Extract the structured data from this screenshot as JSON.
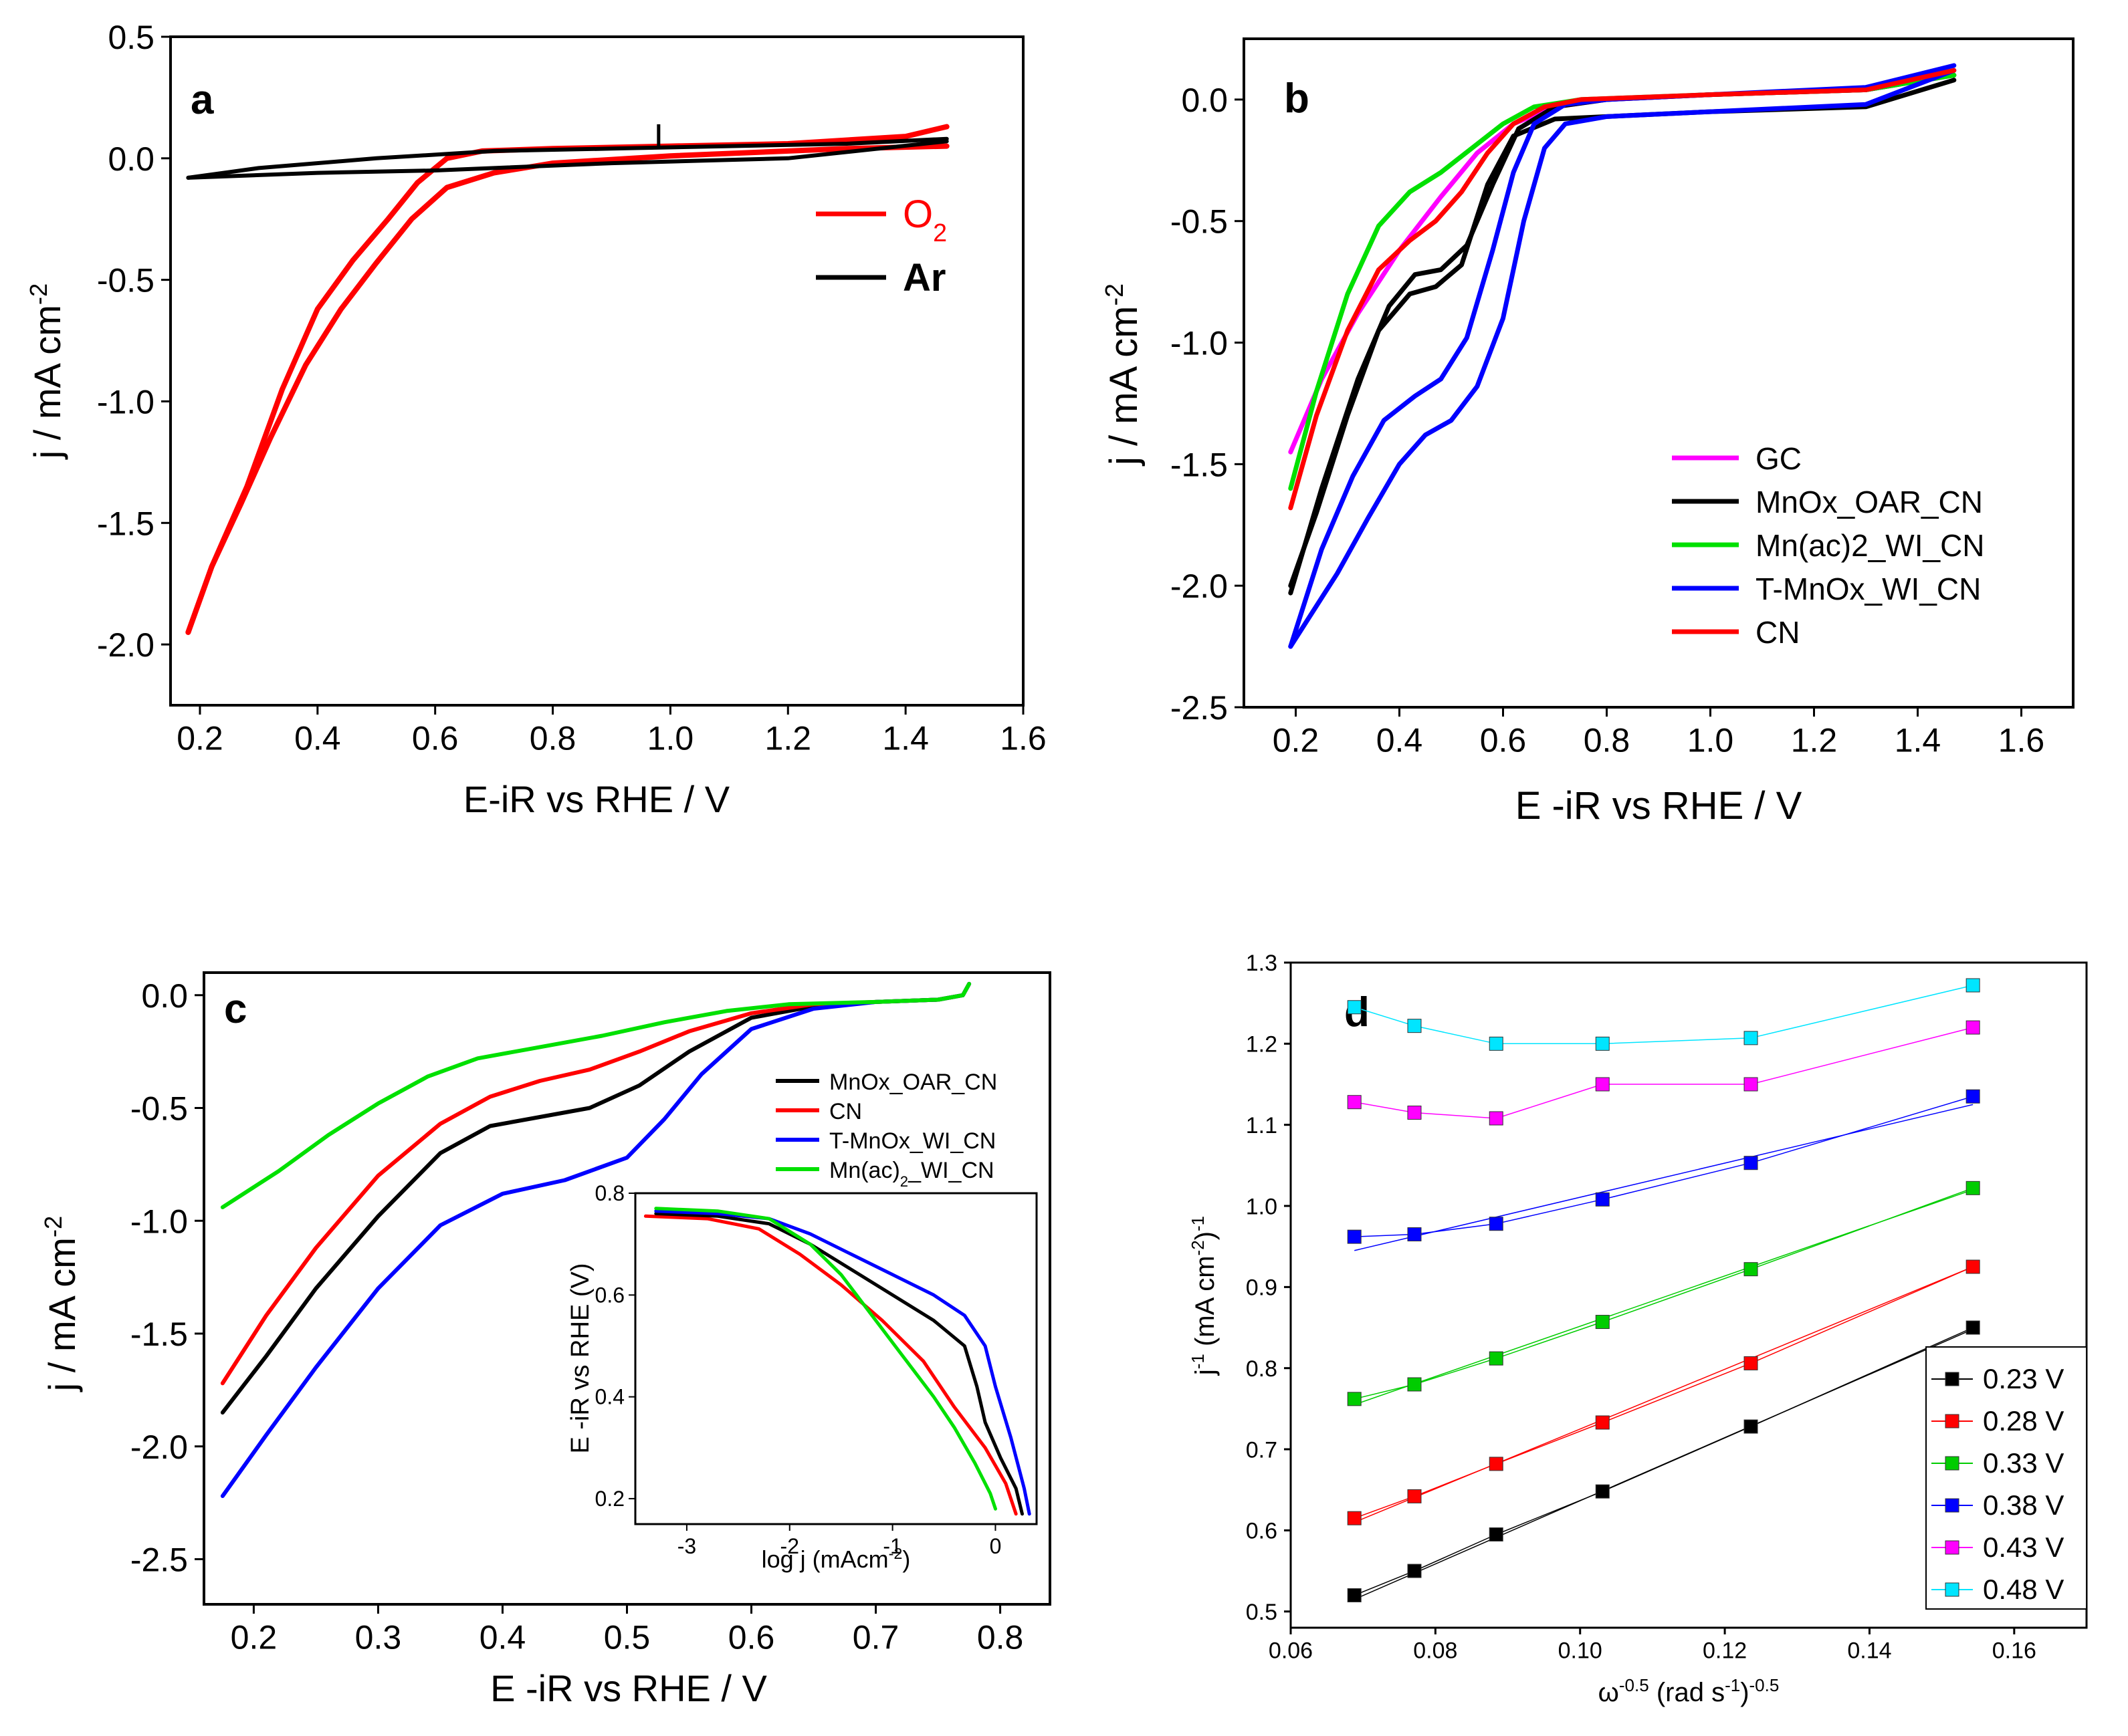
{
  "figure": {
    "description_free": true
  },
  "chart_data": [
    {
      "panel": "a",
      "type": "line",
      "xlabel": "E-iR vs RHE / V",
      "ylabel": "j / mA cm",
      "ylabel_sup": "-2",
      "xlim": [
        0.15,
        1.6
      ],
      "ylim": [
        -2.25,
        0.5
      ],
      "xticks": [
        0.2,
        0.4,
        0.6,
        0.8,
        1.0,
        1.2,
        1.4,
        1.6
      ],
      "xtick_labels": [
        "0.2",
        "0.4",
        "0.6",
        "0.8",
        "1.0",
        "1.2",
        "1.4",
        "1.6"
      ],
      "yticks": [
        0.5,
        0.0,
        -0.5,
        -1.0,
        -1.5,
        -2.0
      ],
      "ytick_labels": [
        "0.5",
        "0.0",
        "-0.5",
        "-1.0",
        "-1.5",
        "-2.0"
      ],
      "legend": [
        {
          "label": "O",
          "sub": "2",
          "color": "#ff0000"
        },
        {
          "label": "Ar",
          "color": "#000000"
        }
      ],
      "series": [
        {
          "name": "O2",
          "color": "#ff0000",
          "width": 8,
          "x": [
            0.18,
            0.22,
            0.28,
            0.34,
            0.4,
            0.46,
            0.52,
            0.57,
            0.62,
            0.68,
            0.8,
            1.0,
            1.2,
            1.4,
            1.47
          ],
          "y": [
            -1.95,
            -1.68,
            -1.35,
            -0.95,
            -0.62,
            -0.42,
            -0.25,
            -0.1,
            0.0,
            0.03,
            0.04,
            0.05,
            0.06,
            0.09,
            0.13
          ]
        },
        {
          "name": "O2 (cathodic)",
          "color": "#ff0000",
          "width": 8,
          "x": [
            1.47,
            1.3,
            1.0,
            0.8,
            0.7,
            0.62,
            0.56,
            0.5,
            0.44,
            0.38,
            0.32,
            0.27,
            0.22,
            0.18
          ],
          "y": [
            0.05,
            0.04,
            0.01,
            -0.02,
            -0.06,
            -0.12,
            -0.25,
            -0.43,
            -0.62,
            -0.85,
            -1.15,
            -1.42,
            -1.68,
            -1.95
          ]
        },
        {
          "name": "Ar",
          "color": "#000000",
          "width": 6,
          "x": [
            0.18,
            0.3,
            0.5,
            0.7,
            0.9,
            1.1,
            1.3,
            1.47
          ],
          "y": [
            -0.08,
            -0.04,
            0.0,
            0.03,
            0.04,
            0.05,
            0.06,
            0.08
          ]
        },
        {
          "name": "Ar (return)",
          "color": "#000000",
          "width": 6,
          "x": [
            1.47,
            1.2,
            0.9,
            0.6,
            0.4,
            0.18
          ],
          "y": [
            0.07,
            0.0,
            -0.02,
            -0.05,
            -0.06,
            -0.08
          ]
        }
      ],
      "spike": {
        "x": 0.98,
        "y0": 0.05,
        "y1": 0.14
      }
    },
    {
      "panel": "b",
      "type": "line",
      "xlabel": "E -iR vs RHE / V",
      "ylabel": "j / mA cm",
      "ylabel_sup": "-2",
      "xlim": [
        0.1,
        1.7
      ],
      "ylim": [
        -2.5,
        0.25
      ],
      "xticks": [
        0.2,
        0.4,
        0.6,
        0.8,
        1.0,
        1.2,
        1.4,
        1.6
      ],
      "xtick_labels": [
        "0.2",
        "0.4",
        "0.6",
        "0.8",
        "1.0",
        "1.2",
        "1.4",
        "1.6"
      ],
      "yticks": [
        0.0,
        -0.5,
        -1.0,
        -1.5,
        -2.0,
        -2.5
      ],
      "ytick_labels": [
        "0.0",
        "-0.5",
        "-1.0",
        "-1.5",
        "-2.0",
        "-2.5"
      ],
      "legend": [
        {
          "label": "GC",
          "color": "#ff00ff"
        },
        {
          "label": "MnOx_OAR_CN",
          "color": "#000000"
        },
        {
          "label": "Mn(ac)2_WI_CN",
          "color": "#00e000"
        },
        {
          "label": "T-MnOx_WI_CN",
          "color": "#0000ff"
        },
        {
          "label": "CN",
          "color": "#ff0000"
        }
      ],
      "series": [
        {
          "name": "GC",
          "color": "#ff00ff",
          "x": [
            0.19,
            0.25,
            0.32,
            0.4,
            0.48,
            0.55,
            0.62,
            0.7,
            0.8,
            1.0,
            1.3,
            1.47
          ],
          "y": [
            -1.45,
            -1.15,
            -0.88,
            -0.62,
            -0.4,
            -0.22,
            -0.1,
            -0.03,
            0.0,
            0.02,
            0.04,
            0.1
          ]
        },
        {
          "name": "MnOx_OAR_CN",
          "color": "#000000",
          "x": [
            0.19,
            0.25,
            0.32,
            0.38,
            0.43,
            0.48,
            0.53,
            0.58,
            0.63,
            0.7,
            0.8,
            1.0,
            1.3,
            1.47
          ],
          "y": [
            -2.03,
            -1.6,
            -1.15,
            -0.85,
            -0.72,
            -0.7,
            -0.6,
            -0.35,
            -0.12,
            -0.03,
            0.0,
            0.02,
            0.04,
            0.1
          ]
        },
        {
          "name": "MnOx_OAR_CN (return)",
          "color": "#000000",
          "x": [
            1.47,
            1.3,
            1.0,
            0.8,
            0.7,
            0.62,
            0.57,
            0.52,
            0.47,
            0.42,
            0.36,
            0.3,
            0.24,
            0.19
          ],
          "y": [
            0.08,
            -0.03,
            -0.05,
            -0.07,
            -0.08,
            -0.15,
            -0.35,
            -0.68,
            -0.77,
            -0.8,
            -0.95,
            -1.3,
            -1.7,
            -2.0
          ]
        },
        {
          "name": "Mn(ac)2_WI_CN",
          "color": "#00e000",
          "x": [
            0.19,
            0.24,
            0.3,
            0.36,
            0.42,
            0.48,
            0.54,
            0.6,
            0.66,
            0.75,
            1.0,
            1.3,
            1.47
          ],
          "y": [
            -1.6,
            -1.2,
            -0.8,
            -0.52,
            -0.38,
            -0.3,
            -0.2,
            -0.1,
            -0.03,
            0.0,
            0.02,
            0.04,
            0.1
          ]
        },
        {
          "name": "T-MnOx_WI_CN",
          "color": "#0000ff",
          "x": [
            0.19,
            0.25,
            0.31,
            0.37,
            0.43,
            0.48,
            0.53,
            0.58,
            0.62,
            0.66,
            0.72,
            0.8,
            1.0,
            1.3,
            1.47
          ],
          "y": [
            -2.25,
            -1.85,
            -1.55,
            -1.32,
            -1.22,
            -1.15,
            -0.98,
            -0.62,
            -0.3,
            -0.1,
            -0.02,
            0.0,
            0.02,
            0.05,
            0.14
          ]
        },
        {
          "name": "T-MnOx_WI_CN (return)",
          "color": "#0000ff",
          "x": [
            1.47,
            1.3,
            1.0,
            0.8,
            0.72,
            0.68,
            0.64,
            0.6,
            0.55,
            0.5,
            0.45,
            0.4,
            0.34,
            0.28,
            0.22,
            0.19
          ],
          "y": [
            0.12,
            -0.02,
            -0.05,
            -0.07,
            -0.1,
            -0.2,
            -0.5,
            -0.9,
            -1.18,
            -1.32,
            -1.38,
            -1.5,
            -1.72,
            -1.95,
            -2.15,
            -2.25
          ]
        },
        {
          "name": "CN",
          "color": "#ff0000",
          "x": [
            0.19,
            0.24,
            0.3,
            0.36,
            0.42,
            0.47,
            0.52,
            0.57,
            0.62,
            0.68,
            0.75,
            1.0,
            1.3,
            1.47
          ],
          "y": [
            -1.68,
            -1.3,
            -0.95,
            -0.7,
            -0.58,
            -0.5,
            -0.38,
            -0.22,
            -0.1,
            -0.03,
            0.0,
            0.02,
            0.04,
            0.12
          ]
        }
      ]
    },
    {
      "panel": "c",
      "type": "line",
      "xlabel": "E -iR vs RHE / V",
      "ylabel": "j / mA cm",
      "ylabel_sup": "-2",
      "xlim": [
        0.16,
        0.84
      ],
      "ylim": [
        -2.7,
        0.1
      ],
      "xticks": [
        0.2,
        0.3,
        0.4,
        0.5,
        0.6,
        0.7,
        0.8
      ],
      "xtick_labels": [
        "0.2",
        "0.3",
        "0.4",
        "0.5",
        "0.6",
        "0.7",
        "0.8"
      ],
      "yticks": [
        0.0,
        -0.5,
        -1.0,
        -1.5,
        -2.0,
        -2.5
      ],
      "ytick_labels": [
        "0.0",
        "-0.5",
        "-1.0",
        "-1.5",
        "-2.0",
        "-2.5"
      ],
      "legend": [
        {
          "label": "MnOx_OAR_CN",
          "color": "#000000"
        },
        {
          "label": "CN",
          "color": "#ff0000"
        },
        {
          "label": "T-MnOx_WI_CN",
          "color": "#0000ff"
        },
        {
          "label": "Mn(ac)",
          "sub": "2",
          "suffix": "_WI_CN",
          "color": "#00e000"
        }
      ],
      "series": [
        {
          "name": "MnOx_OAR_CN",
          "color": "#000000",
          "x": [
            0.175,
            0.21,
            0.25,
            0.3,
            0.35,
            0.39,
            0.43,
            0.47,
            0.51,
            0.55,
            0.6,
            0.65,
            0.7,
            0.75,
            0.77,
            0.775
          ],
          "y": [
            -1.85,
            -1.6,
            -1.3,
            -0.98,
            -0.7,
            -0.58,
            -0.54,
            -0.5,
            -0.4,
            -0.25,
            -0.1,
            -0.05,
            -0.03,
            -0.02,
            0.0,
            0.05
          ]
        },
        {
          "name": "CN",
          "color": "#ff0000",
          "x": [
            0.175,
            0.21,
            0.25,
            0.3,
            0.35,
            0.39,
            0.43,
            0.47,
            0.51,
            0.55,
            0.6,
            0.65,
            0.7,
            0.75,
            0.77,
            0.775
          ],
          "y": [
            -1.72,
            -1.42,
            -1.12,
            -0.8,
            -0.57,
            -0.45,
            -0.38,
            -0.33,
            -0.25,
            -0.16,
            -0.08,
            -0.04,
            -0.03,
            -0.02,
            0.0,
            0.05
          ]
        },
        {
          "name": "T-MnOx_WI_CN",
          "color": "#0000ff",
          "x": [
            0.175,
            0.21,
            0.25,
            0.3,
            0.35,
            0.4,
            0.45,
            0.5,
            0.53,
            0.56,
            0.6,
            0.65,
            0.7,
            0.75,
            0.77,
            0.775
          ],
          "y": [
            -2.22,
            -1.95,
            -1.65,
            -1.3,
            -1.02,
            -0.88,
            -0.82,
            -0.72,
            -0.55,
            -0.35,
            -0.15,
            -0.06,
            -0.03,
            -0.02,
            0.0,
            0.05
          ]
        },
        {
          "name": "Mn(ac)2_WI_CN",
          "color": "#00e000",
          "x": [
            0.175,
            0.22,
            0.26,
            0.3,
            0.34,
            0.38,
            0.43,
            0.48,
            0.53,
            0.58,
            0.63,
            0.7,
            0.75,
            0.77,
            0.775
          ],
          "y": [
            -0.94,
            -0.78,
            -0.62,
            -0.48,
            -0.36,
            -0.28,
            -0.23,
            -0.18,
            -0.12,
            -0.07,
            -0.04,
            -0.03,
            -0.02,
            0.0,
            0.05
          ]
        }
      ],
      "inset": {
        "xlabel": "log j (mAcm",
        "xlabel_sup": "-2",
        "xlabel_end": ")",
        "ylabel": "E -iR vs RHE (V)",
        "xlim": [
          -3.5,
          0.4
        ],
        "ylim": [
          0.15,
          0.8
        ],
        "xticks": [
          -3,
          -2,
          -1,
          0
        ],
        "xtick_labels": [
          "-3",
          "-2",
          "-1",
          "0"
        ],
        "yticks": [
          0.2,
          0.4,
          0.6,
          0.8
        ],
        "ytick_labels": [
          "0.2",
          "0.4",
          "0.6",
          "0.8"
        ],
        "series": [
          {
            "name": "CN",
            "color": "#ff0000",
            "x": [
              -3.4,
              -2.8,
              -2.3,
              -1.9,
              -1.5,
              -1.1,
              -0.7,
              -0.4,
              -0.1,
              0.1,
              0.2
            ],
            "y": [
              0.755,
              0.75,
              0.73,
              0.68,
              0.62,
              0.55,
              0.47,
              0.38,
              0.3,
              0.23,
              0.17
            ]
          },
          {
            "name": "MnOx_OAR_CN",
            "color": "#000000",
            "x": [
              -3.3,
              -2.7,
              -2.2,
              -1.8,
              -1.4,
              -1.0,
              -0.6,
              -0.3,
              -0.18,
              -0.1,
              0.05,
              0.2,
              0.26
            ],
            "y": [
              0.76,
              0.755,
              0.74,
              0.7,
              0.65,
              0.6,
              0.55,
              0.5,
              0.42,
              0.35,
              0.28,
              0.22,
              0.17
            ]
          },
          {
            "name": "T-MnOx_WI_CN",
            "color": "#0000ff",
            "x": [
              -3.3,
              -2.7,
              -2.2,
              -1.8,
              -1.4,
              -1.0,
              -0.6,
              -0.3,
              -0.1,
              0.0,
              0.15,
              0.28,
              0.33
            ],
            "y": [
              0.765,
              0.76,
              0.75,
              0.72,
              0.68,
              0.64,
              0.6,
              0.56,
              0.5,
              0.42,
              0.32,
              0.22,
              0.17
            ]
          },
          {
            "name": "Mn(ac)2_WI_CN",
            "color": "#00e000",
            "x": [
              -3.3,
              -2.7,
              -2.2,
              -1.8,
              -1.5,
              -1.2,
              -0.9,
              -0.6,
              -0.4,
              -0.2,
              -0.05,
              0.0
            ],
            "y": [
              0.77,
              0.765,
              0.75,
              0.7,
              0.64,
              0.56,
              0.48,
              0.4,
              0.34,
              0.27,
              0.21,
              0.18
            ]
          }
        ]
      }
    },
    {
      "panel": "d",
      "type": "scatter",
      "xlabel": "ω",
      "xlabel_sup": "-0.5",
      "xlabel_mid": " (rad s",
      "xlabel_sup2": "-1",
      "xlabel_end": ")",
      "xlabel_sup3": "-0.5",
      "ylabel": "j",
      "ylabel_sup": "-1",
      "ylabel_mid": " (mA cm",
      "ylabel_sup2": "-2",
      "ylabel_end": ")",
      "ylabel_sup3": "-1",
      "xlim": [
        0.06,
        0.17
      ],
      "ylim": [
        0.48,
        1.3
      ],
      "xticks": [
        0.06,
        0.08,
        0.1,
        0.12,
        0.14,
        0.16
      ],
      "xtick_labels": [
        "0.06",
        "0.08",
        "0.10",
        "0.12",
        "0.14",
        "0.16"
      ],
      "yticks": [
        0.5,
        0.6,
        0.7,
        0.8,
        0.9,
        1.0,
        1.1,
        1.2,
        1.3
      ],
      "ytick_labels": [
        "0.5",
        "0.6",
        "0.7",
        "0.8",
        "0.9",
        "1.0",
        "1.1",
        "1.2",
        "1.3"
      ],
      "x": [
        0.0688,
        0.0771,
        0.0884,
        0.1031,
        0.1236,
        0.1543
      ],
      "series": [
        {
          "name": "0.23 V",
          "color": "#000000",
          "values": [
            0.52,
            0.55,
            0.595,
            0.648,
            0.728,
            0.85
          ],
          "fit": [
            0.515,
            0.848
          ]
        },
        {
          "name": "0.28 V",
          "color": "#ff0000",
          "values": [
            0.615,
            0.642,
            0.682,
            0.733,
            0.806,
            0.925
          ],
          "fit": [
            0.61,
            0.925
          ]
        },
        {
          "name": "0.33 V",
          "color": "#00cc00",
          "values": [
            0.762,
            0.78,
            0.812,
            0.857,
            0.922,
            1.022
          ],
          "fit": [
            0.755,
            1.02
          ]
        },
        {
          "name": "0.38 V",
          "color": "#0000ff",
          "values": [
            0.962,
            0.965,
            0.978,
            1.008,
            1.053,
            1.135
          ],
          "fit": [
            0.945,
            1.125
          ]
        },
        {
          "name": "0.43 V",
          "color": "#ff00ff",
          "values": [
            1.128,
            1.115,
            1.108,
            1.15,
            1.15,
            1.22
          ],
          "fit": null
        },
        {
          "name": "0.48 V",
          "color": "#00e5ff",
          "values": [
            1.245,
            1.222,
            1.2,
            1.2,
            1.207,
            1.272
          ],
          "fit": null
        }
      ]
    }
  ]
}
